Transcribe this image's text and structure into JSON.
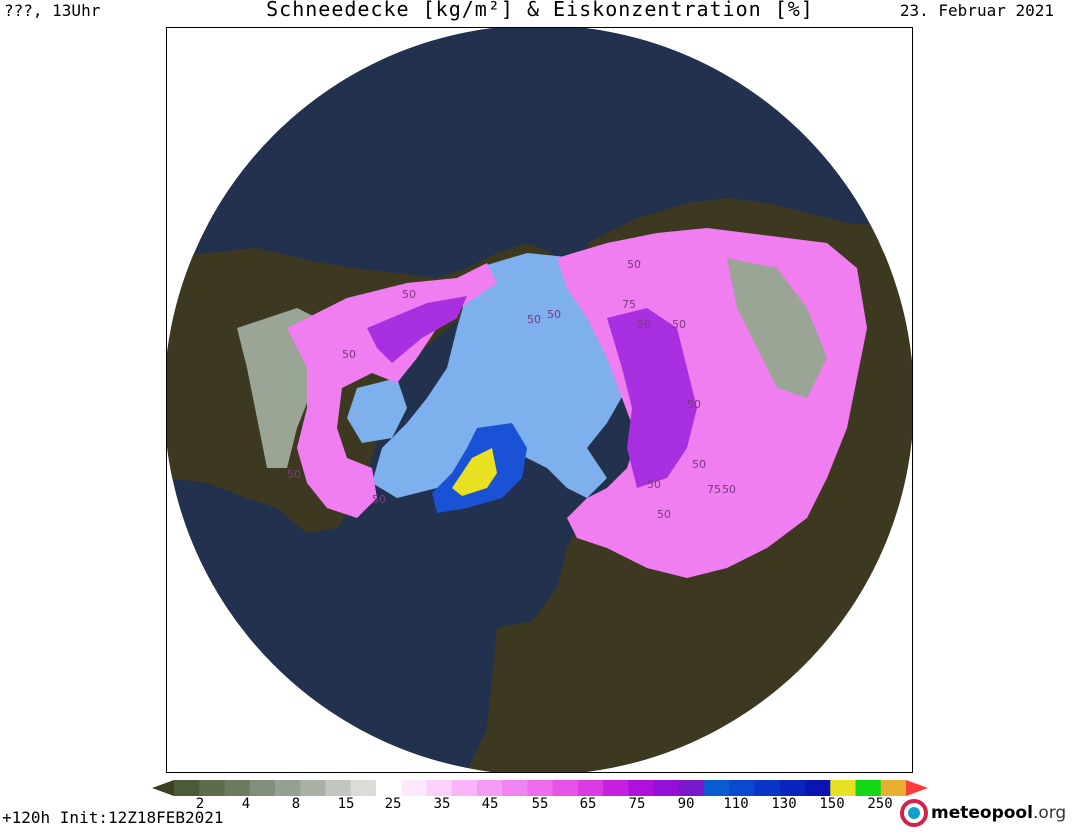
{
  "header": {
    "left": "???, 13Uhr",
    "title": "Schneedecke [kg/m²] & Eiskonzentration [%]",
    "right": "23. Februar 2021"
  },
  "map": {
    "colors": {
      "ocean": "#22324e",
      "land": "#3d3920",
      "sea_ice": "#7fb0ee",
      "snow_magenta": "#f07ef0",
      "snow_purple": "#a830e0",
      "snow_grey": "#9aa595",
      "greenland_blue": "#1a52d6",
      "greenland_yellow": "#e8e020"
    },
    "contour_labels": [
      "50",
      "50",
      "50",
      "50",
      "50",
      "50",
      "50",
      "50",
      "75",
      "50",
      "50",
      "50",
      "50",
      "75",
      "50",
      "50"
    ]
  },
  "legend": {
    "colors": [
      "#4d5a37",
      "#5e6b4b",
      "#6d7a5e",
      "#80907a",
      "#95a092",
      "#a9b0a6",
      "#c2c6c0",
      "#dadcd8",
      "#ffffff",
      "#fde8fd",
      "#fbd0fb",
      "#f8b6f8",
      "#f59cf5",
      "#f283f2",
      "#ee6cee",
      "#e752e8",
      "#dc3ae2",
      "#c820e0",
      "#b010dc",
      "#9410d8",
      "#7818c8",
      "#0a5ad0",
      "#0a48d0",
      "#0a36c8",
      "#0a24c0",
      "#0a14b0",
      "#e8e020",
      "#14d814",
      "#e8b030"
    ],
    "left_arrow_color": "#3a4020",
    "right_arrow_color": "#ff3c3c",
    "tick_labels": [
      "2",
      "4",
      "8",
      "15",
      "25",
      "35",
      "45",
      "55",
      "65",
      "75",
      "90",
      "110",
      "130",
      "150",
      "250"
    ]
  },
  "footer": {
    "left": "+120h  Init:12Z18FEB2021",
    "logo_main": "meteopool",
    "logo_suffix": ".org"
  }
}
